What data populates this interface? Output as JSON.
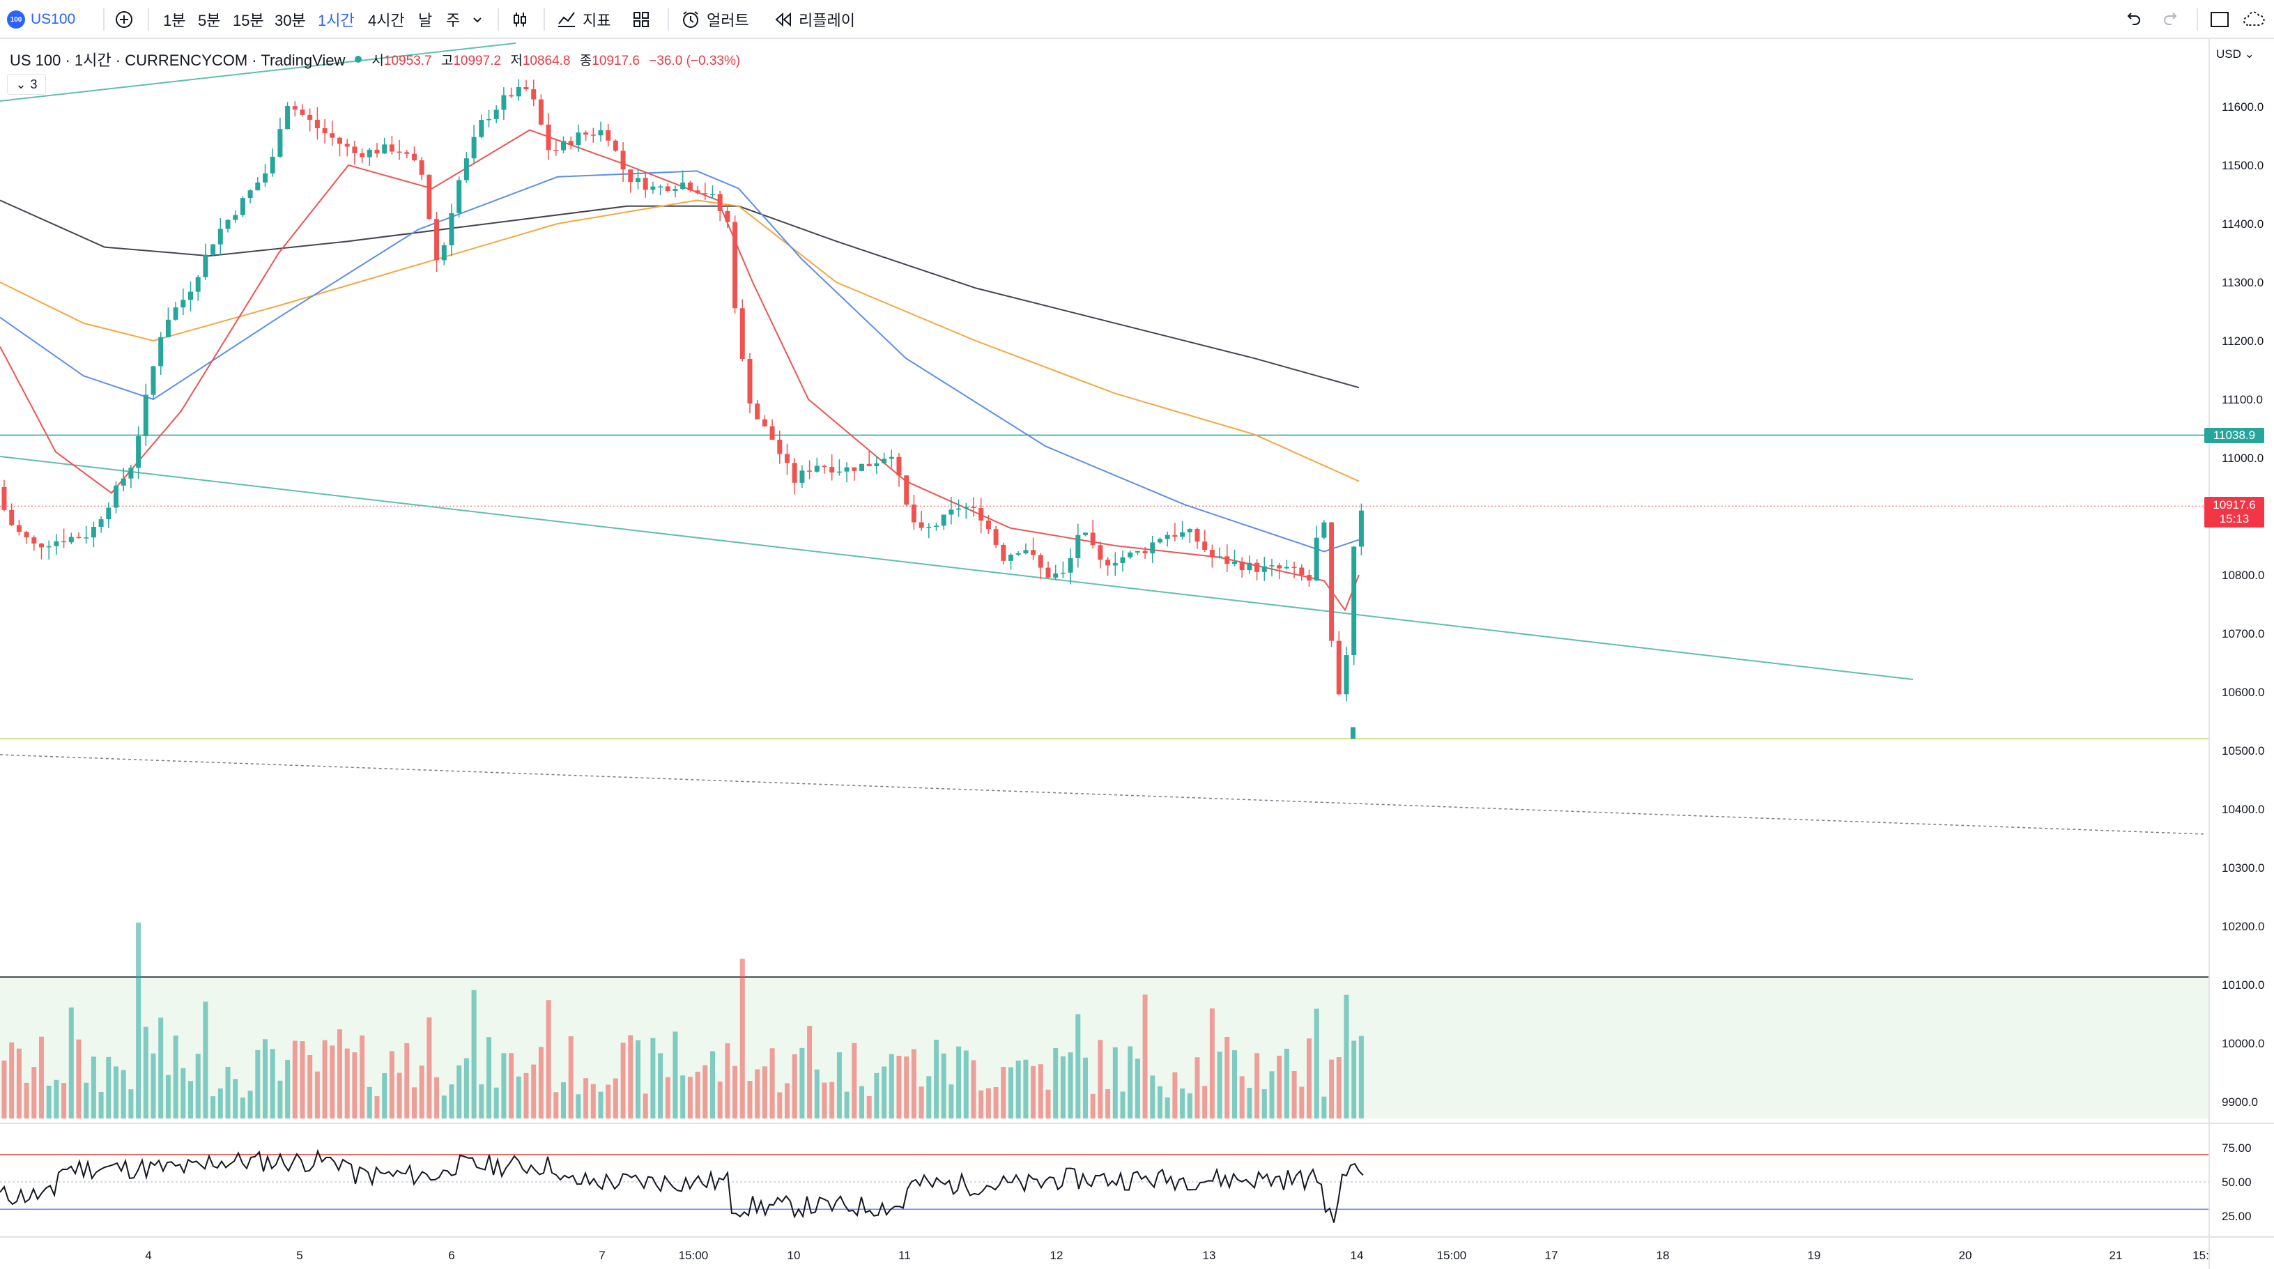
{
  "toolbar": {
    "symbol": "US100",
    "symbol_logo_text": "100",
    "intervals": [
      "1분",
      "5분",
      "15분",
      "30분",
      "1시간",
      "4시간",
      "날",
      "주"
    ],
    "active_interval": "1시간",
    "indicators_label": "지표",
    "alert_label": "얼러트",
    "replay_label": "리플레이"
  },
  "legend": {
    "title": "US 100 · 1시간 · CURRENCYCOM · TradingView",
    "open_label": "시",
    "open": "10953.7",
    "high_label": "고",
    "high": "10997.2",
    "low_label": "저",
    "low": "10864.8",
    "close_label": "종",
    "close": "10917.6",
    "change": "−36.0 (−0.33%)",
    "collapsed_count": "3"
  },
  "price_axis": {
    "currency": "USD",
    "ticks": [
      "11600.0",
      "11500.0",
      "11400.0",
      "11300.0",
      "11200.0",
      "11100.0",
      "11000.0",
      "10900.0",
      "10800.0",
      "10700.0",
      "10600.0",
      "10500.0",
      "10400.0",
      "10300.0",
      "10200.0",
      "10100.0",
      "10000.0",
      "9900.0"
    ],
    "horizontal_line_label": "11038.9",
    "last_price_label": "10917.6",
    "countdown": "15:13"
  },
  "rsi_axis": {
    "ticks": [
      "75.00",
      "50.00",
      "25.00"
    ]
  },
  "time_axis": {
    "ticks": [
      "4",
      "5",
      "6",
      "7",
      "15:00",
      "10",
      "11",
      "12",
      "13",
      "14",
      "15:00",
      "17",
      "18",
      "19",
      "20",
      "21",
      "15:"
    ]
  },
  "colors": {
    "up": "#26a69a",
    "down": "#ef5350",
    "accent": "#2962ff",
    "hline": "#26a69a"
  }
}
